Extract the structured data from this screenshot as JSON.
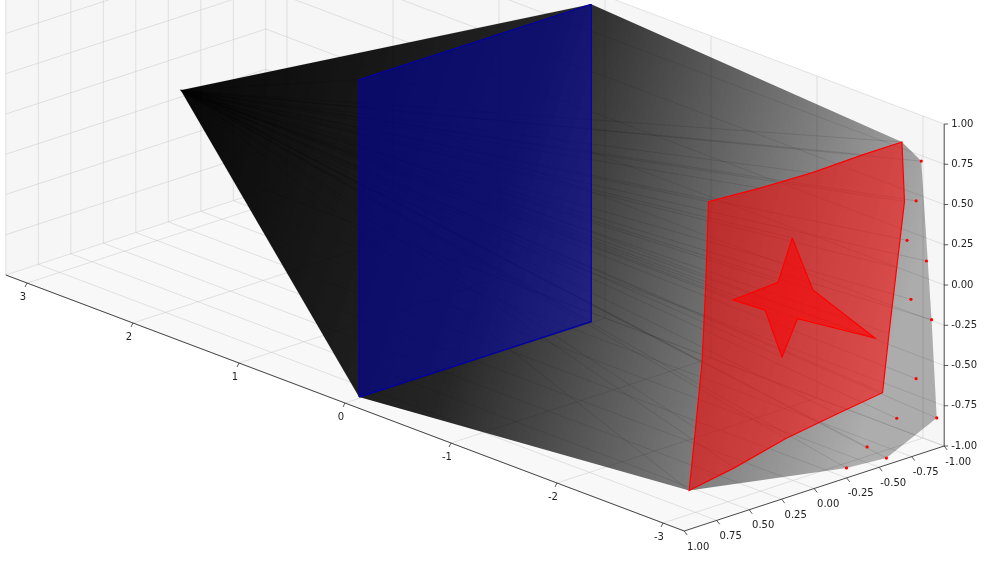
{
  "chart_data": {
    "type": "scatter3d",
    "xlim": [
      -3.2,
      3.2
    ],
    "xticks": [
      -3,
      -2,
      -1,
      0,
      1,
      2,
      3
    ],
    "ylim": [
      -1,
      1
    ],
    "yticks": [
      {
        "value": 1,
        "label": "1.00"
      },
      {
        "value": 0.75,
        "label": "0.75"
      },
      {
        "value": 0.5,
        "label": "0.50"
      },
      {
        "value": 0.25,
        "label": "0.25"
      },
      {
        "value": 0,
        "label": "0.00"
      },
      {
        "value": -0.25,
        "label": "-0.25"
      },
      {
        "value": -0.5,
        "label": "-0.50"
      },
      {
        "value": -0.75,
        "label": "-0.75"
      },
      {
        "value": -1,
        "label": "-1.00"
      }
    ],
    "zlim": [
      -1,
      1
    ],
    "zticks": [
      {
        "value": 1,
        "label": "1.00"
      },
      {
        "value": 0.75,
        "label": "0.75"
      },
      {
        "value": 0.5,
        "label": "0.50"
      },
      {
        "value": 0.25,
        "label": "0.25"
      },
      {
        "value": 0,
        "label": "0.00"
      },
      {
        "value": -0.25,
        "label": "-0.25"
      },
      {
        "value": -0.5,
        "label": "-0.50"
      },
      {
        "value": -0.75,
        "label": "-0.75"
      },
      {
        "value": -1,
        "label": "-1.00"
      }
    ],
    "grid": true,
    "series": [
      {
        "type": "rays",
        "color": "#000000",
        "x": [
          2.8
        ],
        "y": [
          0
        ],
        "z": [
          0
        ]
      },
      {
        "type": "surface",
        "color": "#0000aa",
        "x": [
          0,
          0,
          0,
          0
        ],
        "y": [
          0.9,
          -0.9,
          -0.9,
          0.9
        ],
        "z": [
          -1,
          -1,
          1,
          1
        ]
      },
      {
        "type": "surface",
        "color": "#ff0000",
        "x": [
          -3.2,
          -3.2,
          -3.2,
          -3.2,
          -3.2,
          -3.2,
          -3.2,
          -3.2,
          -3.2,
          -3.2,
          -3.2,
          -3.2,
          -3.2,
          -3.2,
          -3.2,
          -3.2
        ],
        "y": [
          0.8,
          0.4,
          0,
          -0.4,
          -0.7,
          -0.72,
          -0.66,
          -0.6,
          -0.55,
          -0.2,
          0.2,
          0.6,
          0.95,
          0.9,
          0.85,
          0.82
        ],
        "z": [
          1.0,
          0.98,
          0.97,
          0.98,
          0.98,
          0.6,
          0.2,
          -0.2,
          -0.56,
          -0.6,
          -0.65,
          -0.73,
          -0.78,
          -0.4,
          0,
          0.5
        ]
      },
      {
        "type": "surface",
        "color": "#ff0000",
        "x": [
          -3.2,
          -3.2,
          -3.2,
          -3.2,
          -3.2,
          -3.2,
          -3.2,
          -3.2
        ],
        "y": [
          0.15,
          0.26,
          0.61,
          0.36,
          0.23,
          0.11,
          -0.49,
          -0.01
        ],
        "z": [
          0.6,
          0.35,
          0.33,
          0.2,
          -0.13,
          0.08,
          -0.2,
          0.23
        ]
      },
      {
        "type": "scatter",
        "color": "#ff0000",
        "marker": "circle",
        "x": [
          -3.2,
          -3.2,
          -3.2,
          -3.2,
          -3.2,
          -3.2,
          -3.2,
          -3.2,
          -3.2,
          -3.2,
          -3.2,
          -3.2
        ],
        "y": [
          -0.81,
          -0.89,
          -0.93,
          -0.81,
          -0.66,
          -0.43,
          -0.97,
          -0.77,
          -0.74,
          -0.58,
          -0.27,
          -0.85
        ],
        "z": [
          0.58,
          0.18,
          -0.2,
          -0.54,
          -0.75,
          -0.87,
          -0.83,
          -0.03,
          0.35,
          -0.98,
          -0.96,
          0.82
        ]
      }
    ]
  }
}
